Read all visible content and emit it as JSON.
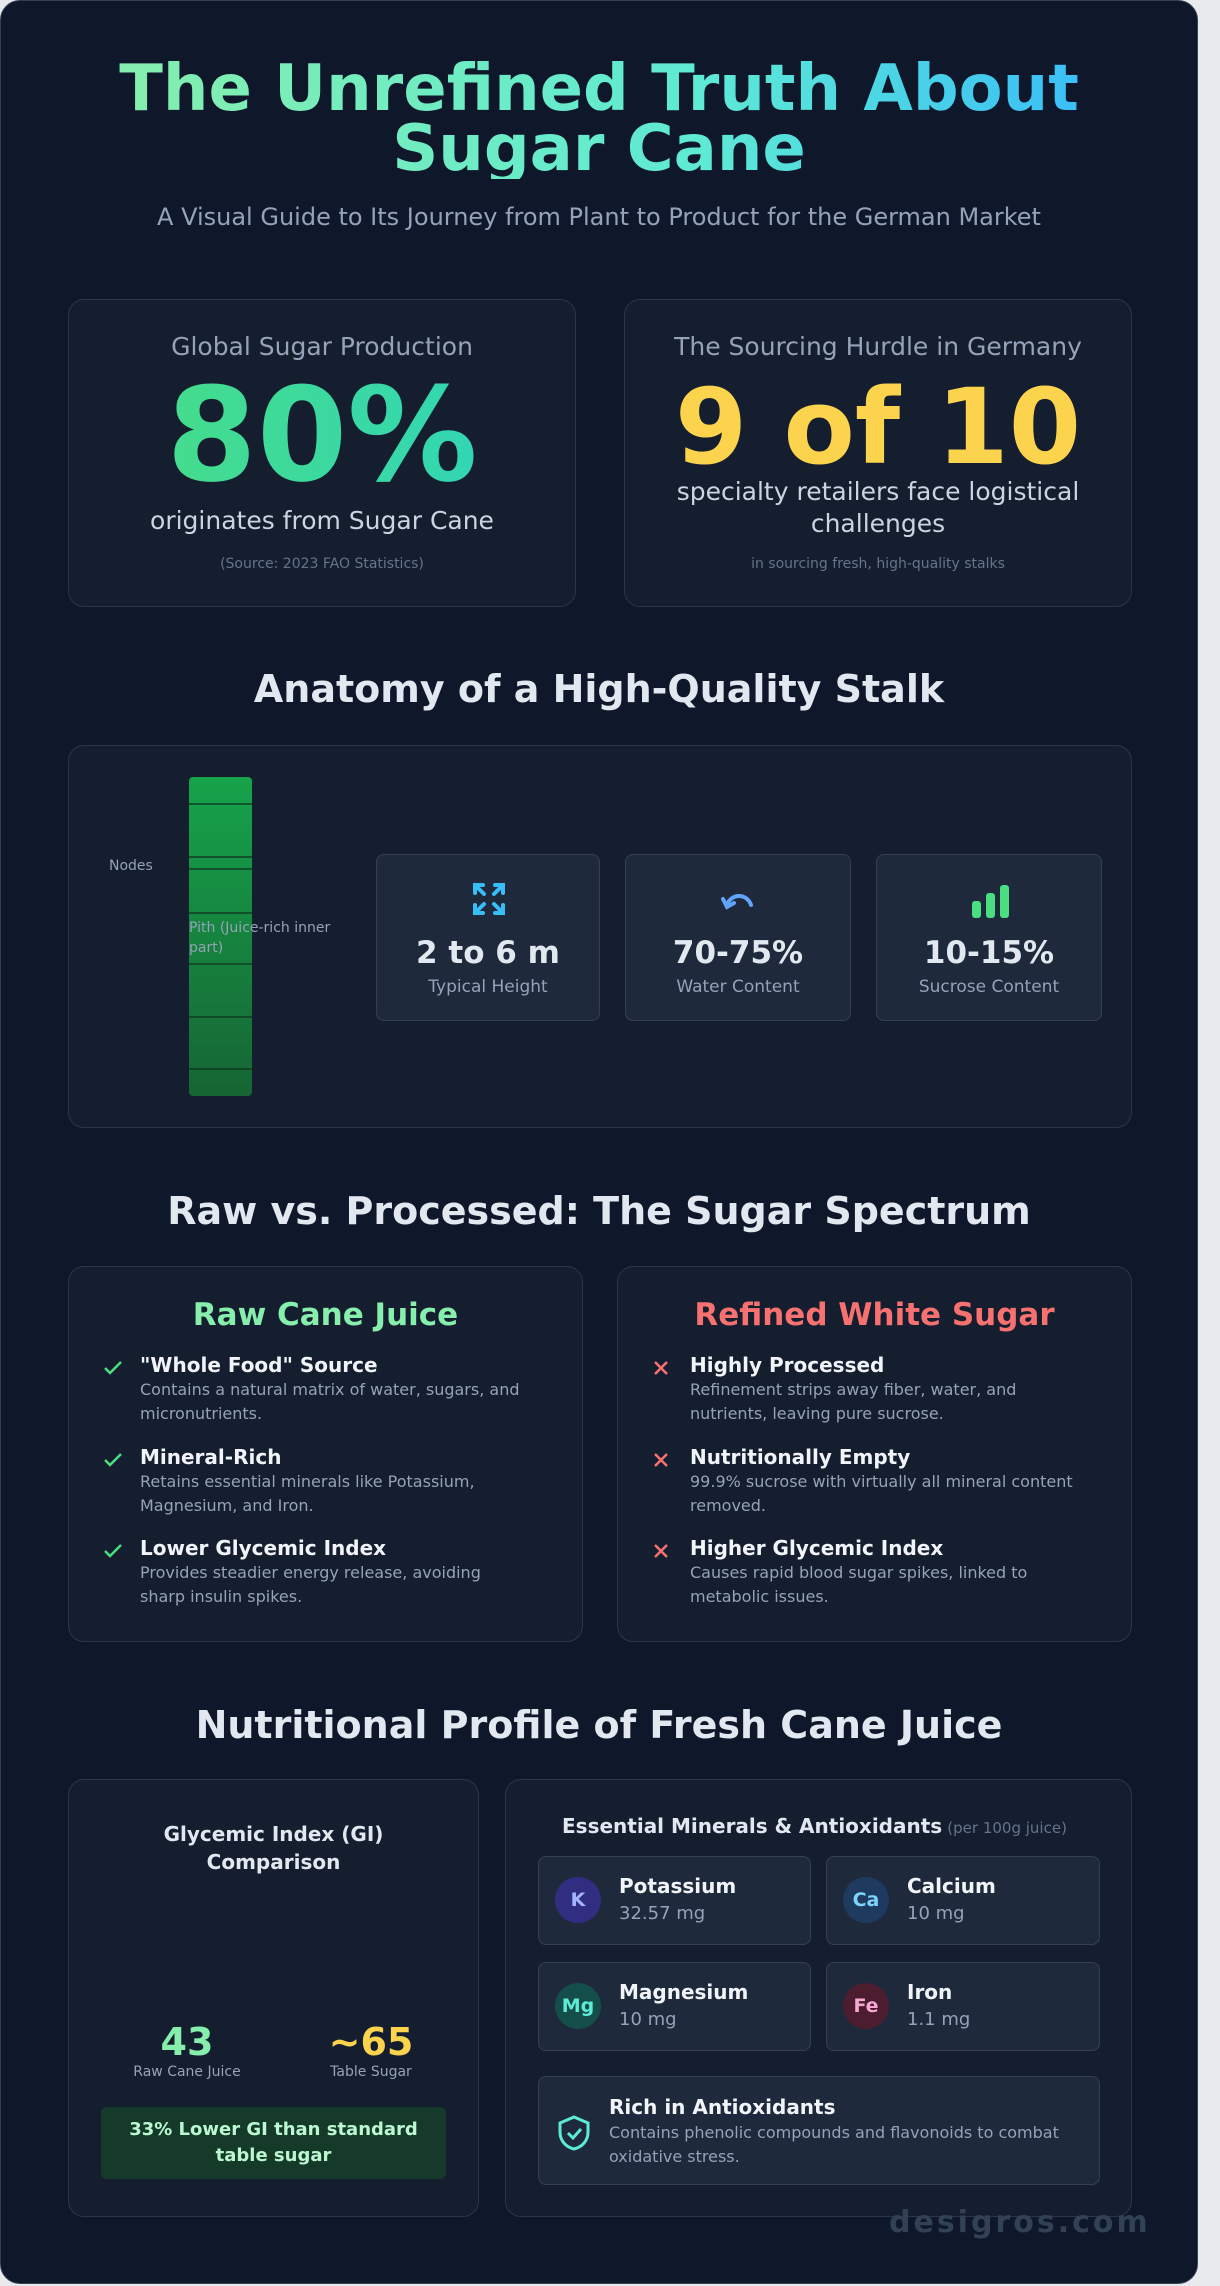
{
  "header": {
    "title": "The Unrefined Truth About Sugar Cane",
    "subtitle": "A Visual Guide to Its Journey from Plant to Product for the German Market"
  },
  "stats": [
    {
      "label": "Global Sugar Production",
      "value": "80%",
      "caption": "originates from Sugar Cane",
      "note": "(Source: 2023 FAO Statistics)"
    },
    {
      "label": "The Sourcing Hurdle in Germany",
      "value": "9 of 10",
      "caption": "specialty retailers face logistical challenges",
      "note": "in sourcing fresh, high-quality stalks"
    }
  ],
  "anatomy": {
    "heading": "Anatomy of a High-Quality Stalk",
    "labels": {
      "nodes": "Nodes",
      "pith": "Pith (Juice-rich inner part)"
    },
    "facts": [
      {
        "value": "2 to 6 m",
        "label": "Typical Height"
      },
      {
        "value": "70-75%",
        "label": "Water Content"
      },
      {
        "value": "10-15%",
        "label": "Sucrose Content"
      }
    ]
  },
  "comparison": {
    "heading": "Raw vs. Processed: The Sugar Spectrum",
    "columns": [
      {
        "title": "Raw Cane Juice",
        "items": [
          {
            "title": "\"Whole Food\" Source",
            "text": "Contains a natural matrix of water, sugars, and micronutrients."
          },
          {
            "title": "Mineral-Rich",
            "text": "Retains essential minerals like Potassium, Magnesium, and Iron."
          },
          {
            "title": "Lower Glycemic Index",
            "text": "Provides steadier energy release, avoiding sharp insulin spikes."
          }
        ]
      },
      {
        "title": "Refined White Sugar",
        "items": [
          {
            "title": "Highly Processed",
            "text": "Refinement strips away fiber, water, and nutrients, leaving pure sucrose."
          },
          {
            "title": "Nutritionally Empty",
            "text": "99.9% sucrose with virtually all mineral content removed."
          },
          {
            "title": "Higher Glycemic Index",
            "text": "Causes rapid blood sugar spikes, linked to metabolic issues."
          }
        ]
      }
    ]
  },
  "nutrition": {
    "heading": "Nutritional Profile of Fresh Cane Juice",
    "gi": {
      "title": "Glycemic Index (GI) Comparison",
      "items": [
        {
          "value": "43",
          "label": "Raw Cane Juice"
        },
        {
          "value": "~65",
          "label": "Table Sugar"
        }
      ],
      "note": "33% Lower GI than standard table sugar"
    },
    "minerals": {
      "title": "Essential Minerals & Antioxidants",
      "subtitle": "(per 100g juice)",
      "items": [
        {
          "symbol": "K",
          "name": "Potassium",
          "amount": "32.57 mg"
        },
        {
          "symbol": "Ca",
          "name": "Calcium",
          "amount": "10 mg"
        },
        {
          "symbol": "Mg",
          "name": "Magnesium",
          "amount": "10 mg"
        },
        {
          "symbol": "Fe",
          "name": "Iron",
          "amount": "1.1 mg"
        }
      ],
      "antioxidants": {
        "title": "Rich in Antioxidants",
        "text": "Contains phenolic compounds and flavonoids to combat oxidative stress."
      }
    }
  },
  "footer": {
    "watermark": "desigros.com"
  }
}
